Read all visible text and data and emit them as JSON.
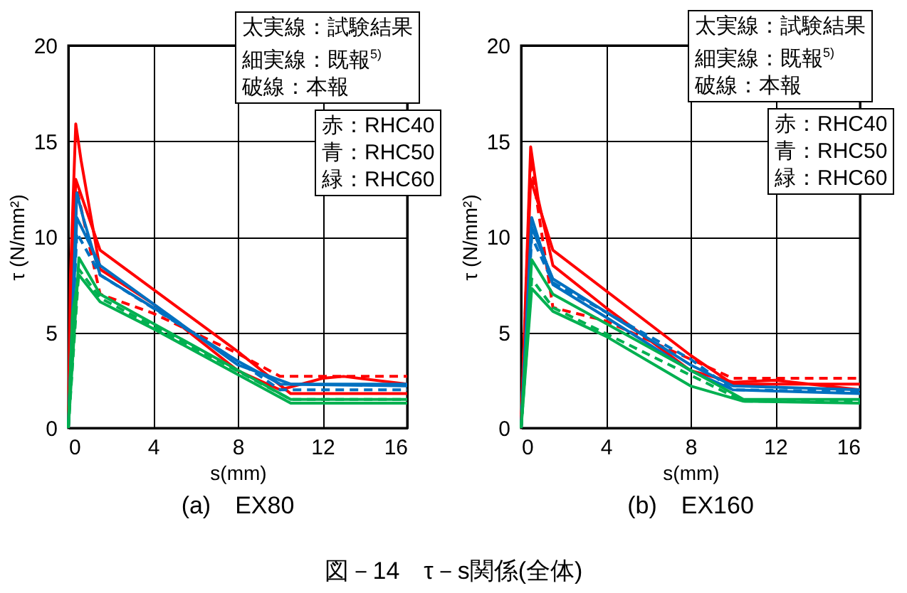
{
  "chart_data": [
    {
      "type": "line",
      "title": "(a)　EX80",
      "xlabel": "s(mm)",
      "ylabel": "τ (N/mm²)",
      "xlim": [
        0,
        16
      ],
      "ylim": [
        0,
        20
      ],
      "xticks": [
        0,
        4,
        8,
        12,
        16
      ],
      "yticks": [
        0,
        5,
        10,
        15,
        20
      ],
      "grid": true,
      "marker": "none",
      "annotations": [
        "太実線：試験結果",
        "細実線：既報$^{5)}$",
        "破線：本報",
        "赤：RHC40",
        "青：RHC50",
        "緑：RHC60"
      ],
      "series": [
        {
          "color": "#ff0000",
          "line_style": "solid",
          "x": [
            0,
            0.1,
            0.35,
            0.6,
            1.5,
            4,
            8,
            10,
            12,
            13,
            16
          ],
          "values": [
            0,
            8,
            15.9,
            14,
            8.3,
            6.5,
            3,
            2,
            2.6,
            2.7,
            2.3
          ]
        },
        {
          "color": "#ff0000",
          "line_style": "solid",
          "x": [
            0,
            0.35,
            1.5,
            8,
            10.5,
            16
          ],
          "values": [
            0,
            13,
            9.3,
            4,
            1.8,
            1.8
          ]
        },
        {
          "color": "#ff0000",
          "line_style": "dashed",
          "x": [
            0,
            0.4,
            1.5,
            4,
            8,
            10,
            16
          ],
          "values": [
            0,
            12.5,
            7,
            6,
            3.9,
            2.7,
            2.7
          ]
        },
        {
          "color": "#0070c0",
          "line_style": "solid",
          "x": [
            0,
            0.4,
            0.7,
            1.5,
            4,
            8,
            10,
            16
          ],
          "values": [
            0,
            12.3,
            11,
            8,
            6.3,
            3.5,
            2.3,
            2.2
          ]
        },
        {
          "color": "#0070c0",
          "line_style": "solid",
          "x": [
            0,
            0.4,
            1.5,
            8,
            10.5,
            16
          ],
          "values": [
            0,
            11,
            8.5,
            3.3,
            2.3,
            2.3
          ]
        },
        {
          "color": "#0070c0",
          "line_style": "dashed",
          "x": [
            0,
            0.4,
            1.5,
            8,
            10,
            16
          ],
          "values": [
            0,
            10.2,
            8,
            3.5,
            2,
            2
          ]
        },
        {
          "color": "#00b050",
          "line_style": "solid",
          "x": [
            0,
            0.2,
            0.5,
            1.5,
            4,
            8,
            10.5,
            16
          ],
          "values": [
            0,
            6,
            8,
            6.6,
            5.2,
            2.8,
            1.3,
            1.3
          ]
        },
        {
          "color": "#00b050",
          "line_style": "solid",
          "x": [
            0,
            0.5,
            1.5,
            10.5,
            16
          ],
          "values": [
            0,
            8.9,
            7,
            1.5,
            1.5
          ]
        },
        {
          "color": "#00b050",
          "line_style": "dashed",
          "x": [
            0,
            0.5,
            1.5,
            10.5,
            16
          ],
          "values": [
            0,
            8.3,
            6.8,
            1.5,
            1.5
          ]
        }
      ]
    },
    {
      "type": "line",
      "title": "(b)　EX160",
      "xlabel": "s(mm)",
      "ylabel": "τ (N/mm²)",
      "xlim": [
        0,
        16
      ],
      "ylim": [
        0,
        20
      ],
      "xticks": [
        0,
        4,
        8,
        12,
        16
      ],
      "yticks": [
        0,
        5,
        10,
        15,
        20
      ],
      "grid": true,
      "marker": "none",
      "annotations": [
        "太実線：試験結果",
        "細実線：既報$^{5)}$",
        "破線：本報",
        "赤：RHC40",
        "青：RHC50",
        "緑：RHC60",
        "図－14　τ－s関係(全体)"
      ],
      "series": [
        {
          "color": "#ff0000",
          "line_style": "solid",
          "x": [
            0,
            0.45,
            0.8,
            1.5,
            4,
            8,
            10,
            12,
            16
          ],
          "values": [
            0,
            14.7,
            12,
            8.5,
            6.3,
            3,
            2.4,
            2.5,
            2
          ]
        },
        {
          "color": "#ff0000",
          "line_style": "solid",
          "x": [
            0,
            0.45,
            1.5,
            8,
            10,
            16
          ],
          "values": [
            0,
            13,
            9.3,
            3.8,
            2.3,
            2.3
          ]
        },
        {
          "color": "#ff0000",
          "line_style": "dashed",
          "x": [
            0,
            0.45,
            1.5,
            4,
            8,
            10,
            16
          ],
          "values": [
            0,
            14,
            6.3,
            5.6,
            3.6,
            2.6,
            2.6
          ]
        },
        {
          "color": "#0070c0",
          "line_style": "solid",
          "x": [
            0,
            0.5,
            1.5,
            4,
            8,
            10,
            16
          ],
          "values": [
            0,
            11,
            7.5,
            5.8,
            3,
            2,
            1.8
          ]
        },
        {
          "color": "#0070c0",
          "line_style": "solid",
          "x": [
            0,
            0.5,
            1.5,
            8,
            10,
            16
          ],
          "values": [
            0,
            10.5,
            7.8,
            3.3,
            2.2,
            2
          ]
        },
        {
          "color": "#0070c0",
          "line_style": "dashed",
          "x": [
            0,
            0.5,
            1.5,
            8,
            10,
            16
          ],
          "values": [
            0,
            10,
            7.6,
            3.6,
            2,
            1.9
          ]
        },
        {
          "color": "#00b050",
          "line_style": "solid",
          "x": [
            0,
            0.5,
            1.5,
            4,
            8,
            10.5,
            16
          ],
          "values": [
            0,
            7.3,
            6.1,
            4.8,
            2.2,
            1.4,
            1.3
          ]
        },
        {
          "color": "#00b050",
          "line_style": "solid",
          "x": [
            0,
            0.5,
            1.5,
            10.5,
            16
          ],
          "values": [
            0,
            8.8,
            7,
            1.5,
            1.5
          ]
        },
        {
          "color": "#00b050",
          "line_style": "dashed",
          "x": [
            0,
            0.5,
            1.5,
            10.5,
            16
          ],
          "values": [
            0,
            7.8,
            6.3,
            1.4,
            1.4
          ]
        }
      ]
    }
  ]
}
